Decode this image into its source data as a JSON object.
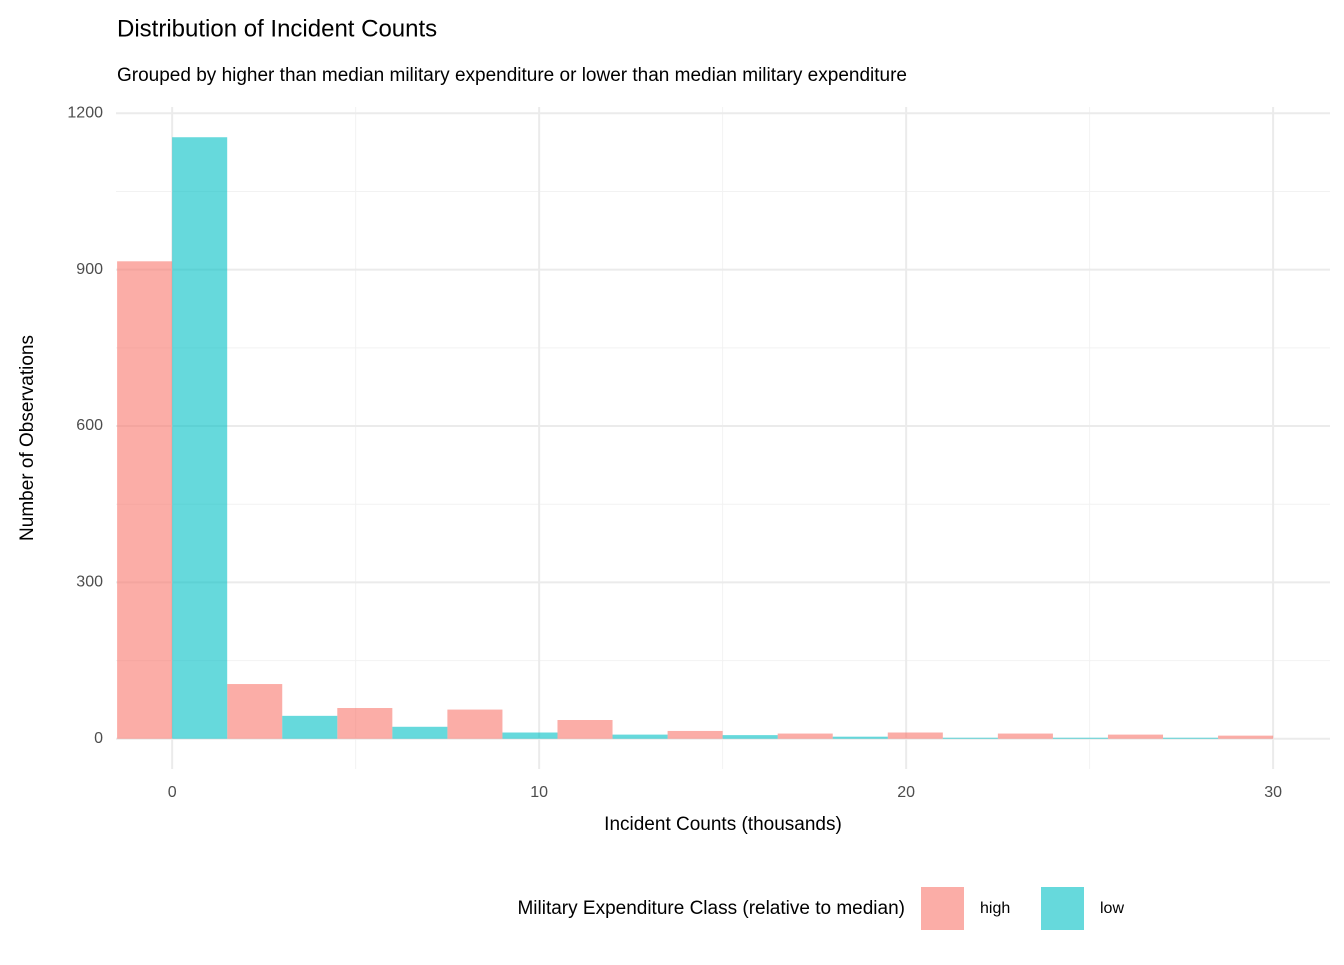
{
  "chart_data": {
    "type": "histogram",
    "title": "Distribution of Incident Counts",
    "subtitle": "Grouped by higher than median military expenditure or lower than median military expenditure",
    "x_label": "Incident Counts (thousands)",
    "y_label": "Number of Observations",
    "legend_title": "Military Expenditure Class (relative to median)",
    "legend_position": "bottom",
    "bins": [
      -1.5,
      1.5,
      4.5,
      7.5,
      10.5,
      13.5,
      16.5,
      19.5,
      22.5,
      25.5,
      28.5,
      31.5
    ],
    "series": [
      {
        "name": "high",
        "color": "#F8766D",
        "values": [
          916,
          105,
          59,
          56,
          36,
          15,
          10,
          12,
          10,
          8,
          6
        ]
      },
      {
        "name": "low",
        "color": "#00BFC4",
        "values": [
          1154,
          44,
          23,
          12,
          8,
          7,
          4,
          2,
          2,
          2,
          0
        ]
      }
    ],
    "alpha": 0.6,
    "xlim": [
      -1.53,
      31.55
    ],
    "xticks": [
      0,
      10,
      20,
      30
    ],
    "xminor": [
      5,
      15,
      25
    ],
    "ylim": [
      -58,
      1212
    ],
    "yticks": [
      0,
      300,
      600,
      900,
      1200
    ],
    "yminor": [
      150,
      450,
      750,
      1050
    ],
    "grid": true
  }
}
